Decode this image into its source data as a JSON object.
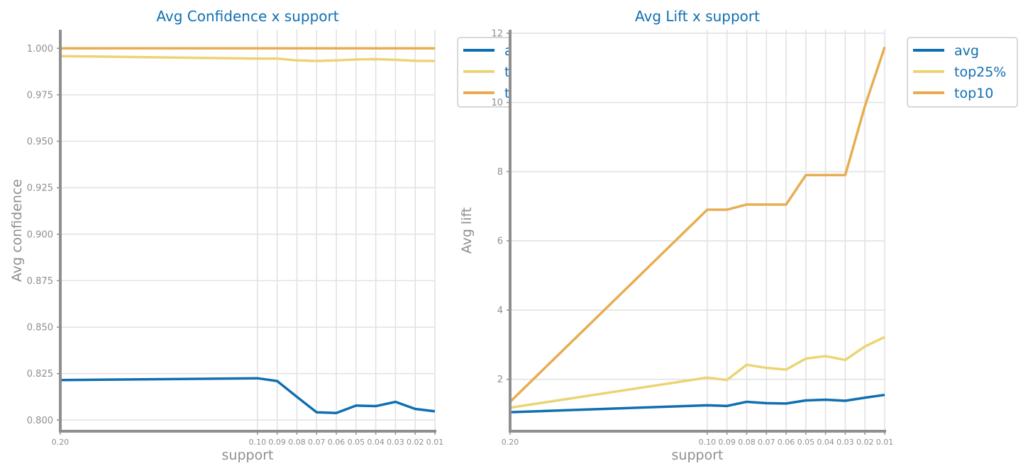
{
  "chart_data": [
    {
      "type": "line",
      "title": "Avg Confidence x support",
      "xlabel": "support",
      "ylabel": "Avg confidence",
      "x": [
        0.2,
        0.1,
        0.09,
        0.08,
        0.07,
        0.06,
        0.05,
        0.04,
        0.03,
        0.02,
        0.01
      ],
      "x_tick_labels": [
        "0.20",
        "0.10",
        "0.09",
        "0.08",
        "0.07",
        "0.06",
        "0.05",
        "0.04",
        "0.03",
        "0.02",
        "0.01"
      ],
      "x_inverted": true,
      "xlim": [
        0.2,
        0.01
      ],
      "ylim": [
        0.794,
        1.01
      ],
      "y_ticks": [
        0.8,
        0.825,
        0.85,
        0.875,
        0.9,
        0.925,
        0.95,
        0.975,
        1.0
      ],
      "y_tick_labels": [
        "0.800",
        "0.825",
        "0.850",
        "0.875",
        "0.900",
        "0.925",
        "0.950",
        "0.975",
        "1.000"
      ],
      "grid": true,
      "legend": "top-right, partially hidden",
      "series": [
        {
          "name": "avg",
          "color": "#0f6fb1",
          "values": [
            0.8215,
            0.8225,
            0.821,
            0.8125,
            0.8042,
            0.8038,
            0.8078,
            0.8075,
            0.8098,
            0.806,
            0.8047
          ]
        },
        {
          "name": "top25%",
          "color": "#ecd474",
          "values": [
            0.9958,
            0.9945,
            0.9945,
            0.9935,
            0.9932,
            0.9935,
            0.994,
            0.9942,
            0.9938,
            0.9933,
            0.9932
          ]
        },
        {
          "name": "top10",
          "color": "#e8ad52",
          "values": [
            1.0,
            1.0,
            1.0,
            1.0,
            1.0,
            1.0,
            1.0,
            1.0,
            1.0,
            1.0,
            1.0
          ]
        }
      ]
    },
    {
      "type": "line",
      "title": "Avg Lift x support",
      "xlabel": "support",
      "ylabel": "Avg lift",
      "x": [
        0.2,
        0.1,
        0.09,
        0.08,
        0.07,
        0.06,
        0.05,
        0.04,
        0.03,
        0.02,
        0.01
      ],
      "x_tick_labels": [
        "0.20",
        "0.10",
        "0.09",
        "0.08",
        "0.07",
        "0.06",
        "0.05",
        "0.04",
        "0.03",
        "0.02",
        "0.01"
      ],
      "x_inverted": true,
      "xlim": [
        0.2,
        0.01
      ],
      "ylim": [
        0.5,
        12.1
      ],
      "y_ticks": [
        2,
        4,
        6,
        8,
        10,
        12
      ],
      "y_tick_labels": [
        "2",
        "4",
        "6",
        "8",
        "10",
        "12"
      ],
      "grid": true,
      "legend": "outside right",
      "series": [
        {
          "name": "avg",
          "color": "#0f6fb1",
          "values": [
            1.05,
            1.25,
            1.23,
            1.35,
            1.31,
            1.3,
            1.39,
            1.41,
            1.38,
            1.47,
            1.55
          ]
        },
        {
          "name": "top25%",
          "color": "#ecd474",
          "values": [
            1.18,
            2.05,
            1.98,
            2.42,
            2.33,
            2.28,
            2.6,
            2.67,
            2.56,
            2.95,
            3.22
          ]
        },
        {
          "name": "top10",
          "color": "#e8ad52",
          "values": [
            1.35,
            6.9,
            6.9,
            7.05,
            7.05,
            7.05,
            7.9,
            7.9,
            7.9,
            9.9,
            11.6
          ]
        }
      ]
    }
  ]
}
